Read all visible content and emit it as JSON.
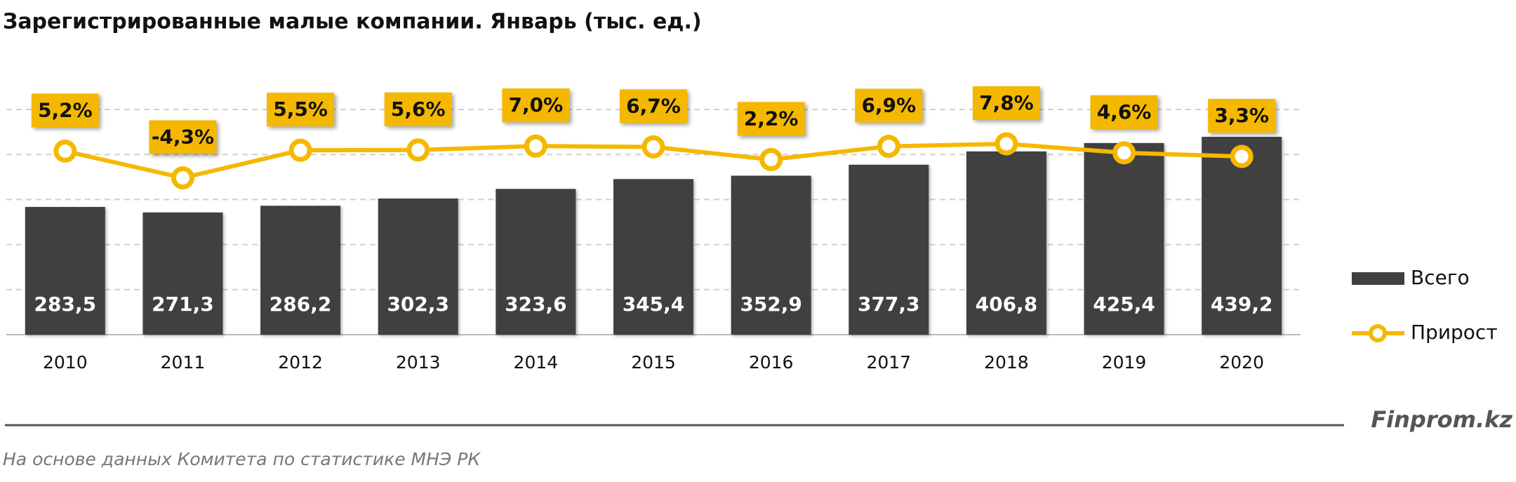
{
  "chart_data": {
    "type": "combo",
    "title": "Зарегистрированные малые компании. Январь (тыс. ед.)",
    "categories": [
      "2010",
      "2011",
      "2012",
      "2013",
      "2014",
      "2015",
      "2016",
      "2017",
      "2018",
      "2019",
      "2020"
    ],
    "series": [
      {
        "name": "Всего",
        "type": "bar",
        "color": "#404040",
        "values": [
          283.5,
          271.3,
          286.2,
          302.3,
          323.6,
          345.4,
          352.9,
          377.3,
          406.8,
          425.4,
          439.2
        ],
        "value_labels": [
          "283,5",
          "271,3",
          "286,2",
          "302,3",
          "323,6",
          "345,4",
          "352,9",
          "377,3",
          "406,8",
          "425,4",
          "439,2"
        ]
      },
      {
        "name": "Прирост",
        "type": "line",
        "axis": "y2",
        "color": "#f5b800",
        "values": [
          5.2,
          -4.3,
          5.5,
          5.6,
          7.0,
          6.7,
          2.2,
          6.9,
          7.8,
          4.6,
          3.3
        ],
        "value_labels": [
          "5,2%",
          "-4,3%",
          "5,5%",
          "5,6%",
          "7,0%",
          "6,7%",
          "2,2%",
          "6,9%",
          "7,8%",
          "4,6%",
          "3,3%"
        ]
      }
    ],
    "ylim": [
      0,
      500
    ],
    "yticks": [
      0,
      100,
      200,
      300,
      400,
      500
    ],
    "y2lim": [
      -60,
      20
    ],
    "grid": true,
    "brand": "Finprom.kz",
    "source": "На основе данных Комитета по статистике МНЭ РК"
  }
}
